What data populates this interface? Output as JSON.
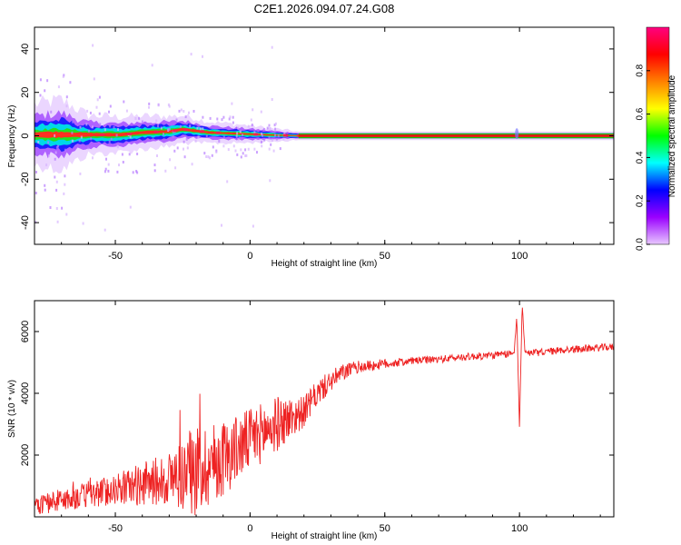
{
  "chart_data": [
    {
      "type": "heatmap",
      "title": "C2E1.2026.094.07.24.G08",
      "xlabel": "Height of straight line (km)",
      "ylabel": "Frequency (Hz)",
      "xlim": [
        -80,
        135
      ],
      "ylim": [
        -50,
        50
      ],
      "xticks": [
        -50,
        0,
        50,
        100
      ],
      "yticks": [
        -40,
        -20,
        0,
        20,
        40
      ],
      "xtick_labels": [
        "-50",
        "0",
        "50",
        "100"
      ],
      "ytick_labels": [
        "-40",
        "-20",
        "0",
        "20",
        "40"
      ],
      "colorbar": {
        "label": "Normalized spectral amplitude",
        "range": [
          0,
          1
        ],
        "ticks": [
          0.0,
          0.2,
          0.4,
          0.6,
          0.8
        ],
        "tick_labels": [
          "0.0",
          "0.2",
          "0.4",
          "0.6",
          "0.8"
        ],
        "colors": [
          "#e8c8ff",
          "#9a00ff",
          "#0000ff",
          "#00ffff",
          "#00ff00",
          "#ffff00",
          "#ff8000",
          "#ff0000",
          "#ff0080"
        ]
      },
      "peak_frequency_track": [
        {
          "x": -80,
          "f": 0.5
        },
        {
          "x": -60,
          "f": 0.5
        },
        {
          "x": -48,
          "f": 0.5
        },
        {
          "x": -40,
          "f": 1.5
        },
        {
          "x": -30,
          "f": 2.0
        },
        {
          "x": -25,
          "f": 3.0
        },
        {
          "x": -15,
          "f": 1.5
        },
        {
          "x": -5,
          "f": 1.0
        },
        {
          "x": 5,
          "f": 0.5
        },
        {
          "x": 18,
          "f": 0.0
        },
        {
          "x": 135,
          "f": 0.0
        }
      ],
      "spread_envelope_hz": [
        {
          "x": -80,
          "w": 14
        },
        {
          "x": -70,
          "w": 16
        },
        {
          "x": -60,
          "w": 9
        },
        {
          "x": -45,
          "w": 8
        },
        {
          "x": -30,
          "w": 7
        },
        {
          "x": -15,
          "w": 5
        },
        {
          "x": 0,
          "w": 4
        },
        {
          "x": 18,
          "w": 2
        },
        {
          "x": 135,
          "w": 2
        }
      ]
    },
    {
      "type": "line",
      "xlabel": "Height of straight line (km)",
      "ylabel": "SNR (10 * v/v)",
      "xlim": [
        -80,
        135
      ],
      "ylim": [
        0,
        7000
      ],
      "xticks": [
        -50,
        0,
        50,
        100
      ],
      "yticks": [
        2000,
        4000,
        6000
      ],
      "xtick_labels": [
        "-50",
        "0",
        "50",
        "100"
      ],
      "ytick_labels": [
        "2000",
        "4000",
        "6000"
      ],
      "color": "#ee2222",
      "series": [
        {
          "name": "SNR",
          "x": [
            -80,
            -70,
            -60,
            -50,
            -40,
            -30,
            -20,
            -10,
            0,
            10,
            20,
            25,
            30,
            35,
            40,
            50,
            60,
            70,
            80,
            90,
            95,
            98,
            99,
            100,
            101,
            102,
            105,
            110,
            120,
            135
          ],
          "y": [
            350,
            550,
            700,
            900,
            1050,
            1250,
            1500,
            1900,
            2500,
            3000,
            3400,
            4000,
            4400,
            4700,
            4850,
            4950,
            5050,
            5100,
            5180,
            5230,
            5260,
            5300,
            6500,
            2900,
            6900,
            5350,
            5300,
            5350,
            5430,
            5500
          ]
        }
      ],
      "noise_amplitude": [
        {
          "x": -80,
          "a": 300
        },
        {
          "x": -50,
          "a": 500
        },
        {
          "x": -30,
          "a": 900
        },
        {
          "x": -20,
          "a": 1500
        },
        {
          "x": -5,
          "a": 1100
        },
        {
          "x": 10,
          "a": 900
        },
        {
          "x": 20,
          "a": 500
        },
        {
          "x": 40,
          "a": 200
        },
        {
          "x": 60,
          "a": 120
        },
        {
          "x": 135,
          "a": 120
        }
      ]
    }
  ]
}
